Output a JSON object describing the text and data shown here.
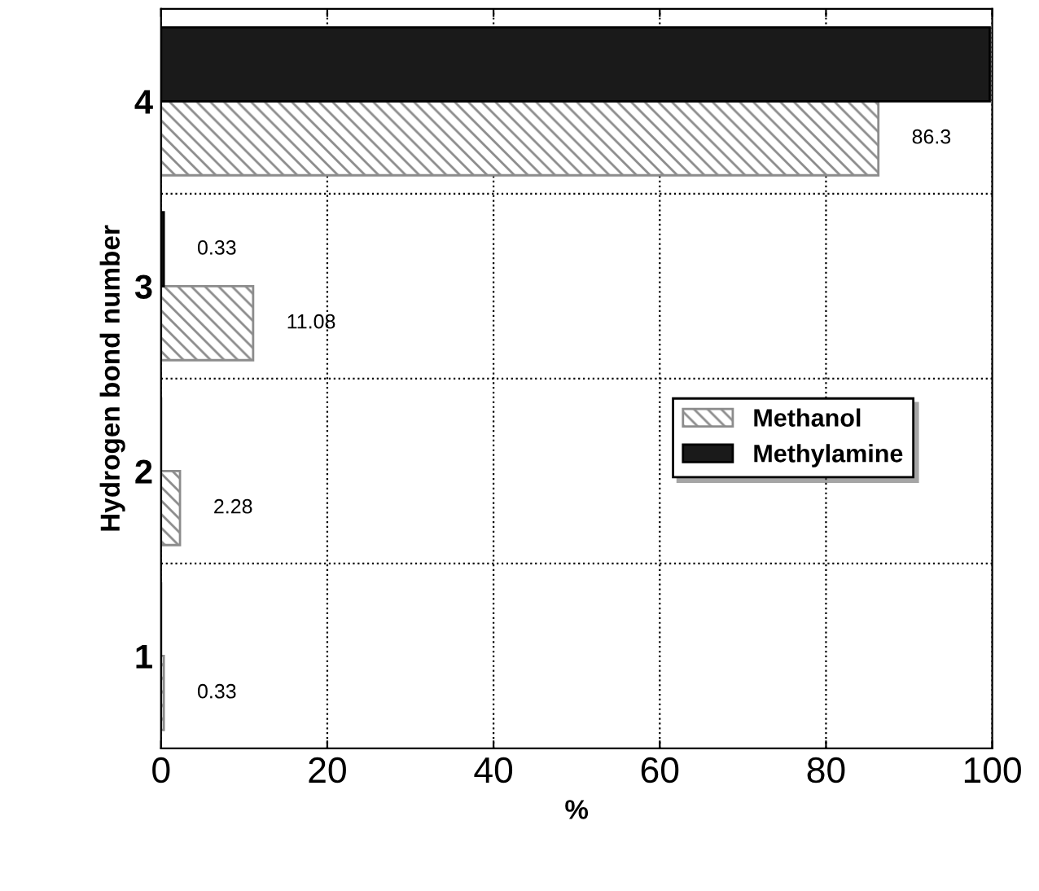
{
  "chart_data": {
    "type": "bar",
    "orientation": "horizontal",
    "xlabel": "%",
    "ylabel": "Hydrogen bond number",
    "categories": [
      "4",
      "3",
      "2",
      "1"
    ],
    "series": [
      {
        "name": "Methanol",
        "color": "#8c8c8c",
        "values": [
          86.3,
          11.08,
          2.28,
          0.33
        ],
        "value_labels": [
          "86.3",
          "11.08",
          "2.28",
          "0.33"
        ]
      },
      {
        "name": "Methylamine",
        "color": "#1a1a1a",
        "values": [
          99.7,
          0.33,
          null,
          null
        ],
        "value_labels": [
          null,
          "0.33",
          null,
          null
        ]
      }
    ],
    "xlim": [
      0,
      100
    ],
    "xticks": [
      0,
      20,
      40,
      60,
      80,
      100
    ],
    "grid": "x",
    "legend": "right"
  }
}
